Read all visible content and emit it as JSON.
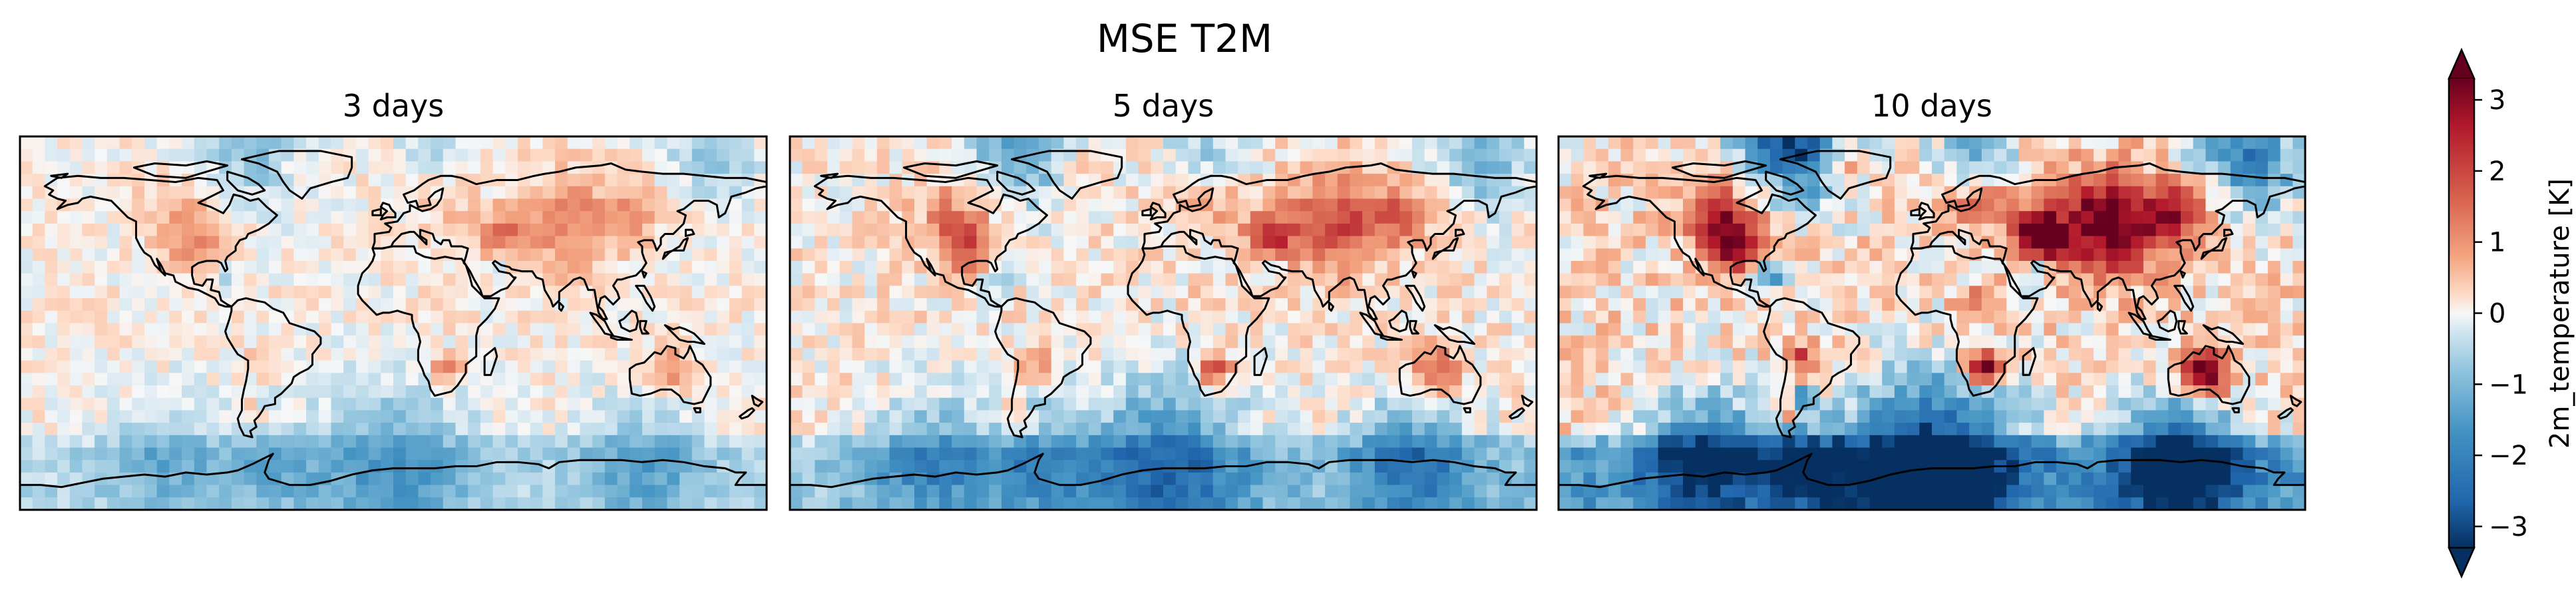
{
  "figure": {
    "title": "MSE T2M"
  },
  "panels": [
    {
      "title": "3 days"
    },
    {
      "title": "5 days"
    },
    {
      "title": "10 days"
    }
  ],
  "colorbar": {
    "label": "2m_temperature [K]",
    "colormap": "RdBu_r",
    "vmin": -3.3,
    "vmax": 3.3,
    "extend": "both",
    "ticks": [
      {
        "value": 3,
        "label": "3"
      },
      {
        "value": 2,
        "label": "2"
      },
      {
        "value": 1,
        "label": "1"
      },
      {
        "value": 0,
        "label": "0"
      },
      {
        "value": -1,
        "label": "−1"
      },
      {
        "value": -2,
        "label": "−2"
      },
      {
        "value": -3,
        "label": "−3"
      }
    ]
  },
  "colors": {
    "darkest_red": "#67001f",
    "red": "#b2182b",
    "light_red": "#f4a582",
    "neutral": "#f7f7f7",
    "light_blue": "#92c5de",
    "blue": "#2166ac",
    "darkest_blue": "#053061",
    "coastline": "#000000"
  }
}
